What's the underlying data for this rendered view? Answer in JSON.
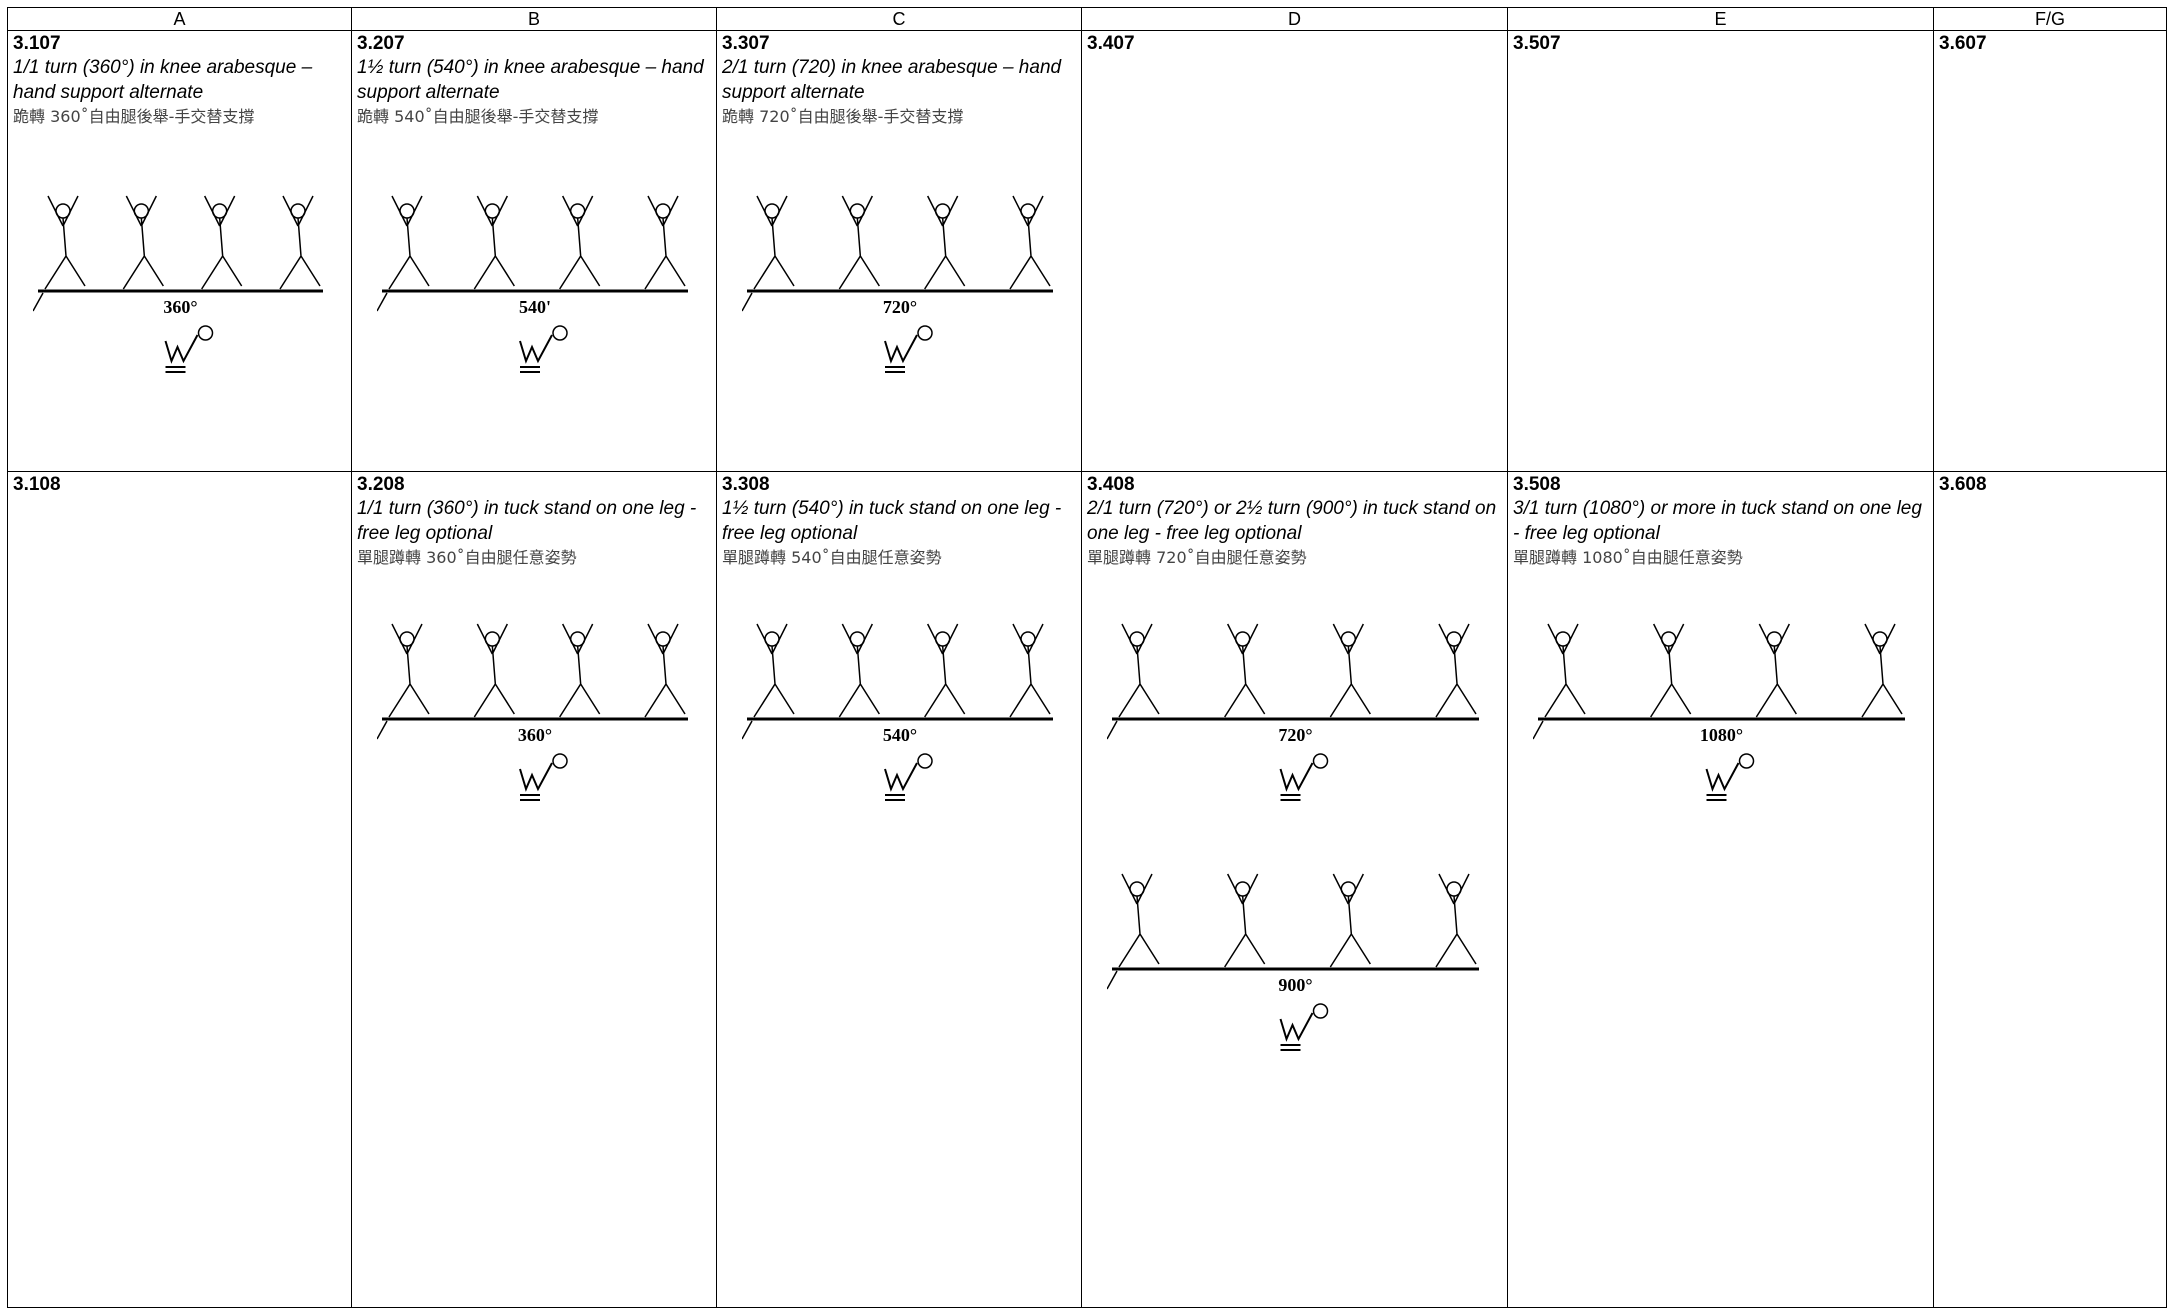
{
  "header": {
    "columns": [
      "A",
      "B",
      "C",
      "D",
      "E",
      "F/G"
    ]
  },
  "rows": [
    [
      {
        "code": "3.107",
        "title": "1/1 turn (360°) in knee arabesque – hand support alternate",
        "chinese": "跪轉 360˚自由腿後舉-手交替支撐",
        "figures": [
          "360°"
        ]
      },
      {
        "code": "3.207",
        "title": "1½ turn (540°) in knee arabesque – hand support alternate",
        "chinese": "跪轉 540˚自由腿後舉-手交替支撐",
        "figures": [
          "540'"
        ]
      },
      {
        "code": "3.307",
        "title": "2/1 turn (720) in knee arabesque – hand support alternate",
        "chinese": "跪轉 720˚自由腿後舉-手交替支撐",
        "figures": [
          "720°"
        ]
      },
      {
        "code": "3.407"
      },
      {
        "code": "3.507"
      },
      {
        "code": "3.607"
      }
    ],
    [
      {
        "code": "3.108"
      },
      {
        "code": "3.208",
        "title": "1/1 turn (360°) in tuck stand on one leg -  free leg optional",
        "chinese": "單腿蹲轉 360˚自由腿任意姿勢",
        "figures": [
          "360°"
        ]
      },
      {
        "code": "3.308",
        "title": "1½ turn (540°) in tuck stand on one leg -  free leg optional",
        "chinese": "單腿蹲轉 540˚自由腿任意姿勢",
        "figures": [
          "540°"
        ]
      },
      {
        "code": "3.408",
        "title": "2/1 turn (720°) or 2½ turn (900°) in tuck stand on one leg -  free leg optional",
        "chinese": "單腿蹲轉 720˚自由腿任意姿勢",
        "figures": [
          "720°",
          "900°"
        ]
      },
      {
        "code": "3.508",
        "title": "3/1 turn (1080°) or more in tuck stand on one leg -  free leg optional",
        "chinese": "單腿蹲轉 1080˚自由腿任意姿勢",
        "figures": [
          "1080°"
        ]
      },
      {
        "code": "3.608"
      }
    ]
  ]
}
